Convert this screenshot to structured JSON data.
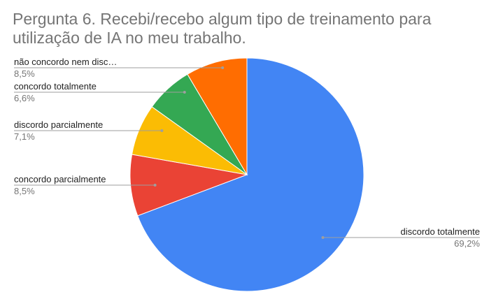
{
  "chart_data": {
    "type": "pie",
    "title": "Pergunta 6. Recebi/recebo algum tipo de treinamento para utilização de IA no meu trabalho.",
    "slices": [
      {
        "label": "discordo totalmente",
        "display_label": "discordo totalmente",
        "value": 69.2,
        "percent_text": "69,2%",
        "color": "#4285f4"
      },
      {
        "label": "concordo parcialmente",
        "display_label": "concordo parcialmente",
        "value": 8.5,
        "percent_text": "8,5%",
        "color": "#ea4335"
      },
      {
        "label": "discordo parcialmente",
        "display_label": "discordo parcialmente",
        "value": 7.1,
        "percent_text": "7,1%",
        "color": "#fbbc04"
      },
      {
        "label": "concordo totalmente",
        "display_label": "concordo totalmente",
        "value": 6.6,
        "percent_text": "6,6%",
        "color": "#34a853"
      },
      {
        "label": "não concordo nem discordo",
        "display_label": "não concordo nem disc…",
        "value": 8.5,
        "percent_text": "8,5%",
        "color": "#ff6d01"
      }
    ],
    "start_angle_deg": 0,
    "direction": "clockwise",
    "legend": "none"
  }
}
